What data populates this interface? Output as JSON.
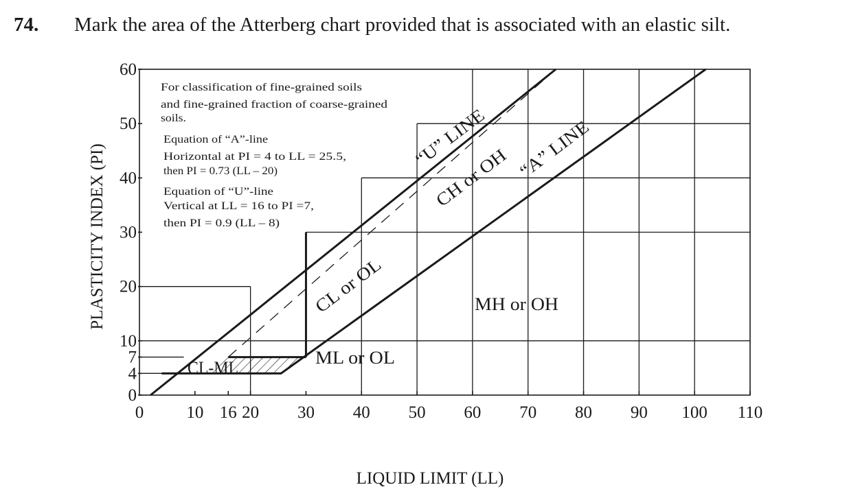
{
  "question": {
    "number": "74.",
    "text": "Mark the area of the Atterberg chart provided that is associated with an elastic silt."
  },
  "chart_data": {
    "type": "line",
    "xlabel": "LIQUID LIMIT (LL)",
    "ylabel": "PLASTICITY INDEX (PI)",
    "xlim": [
      0,
      110
    ],
    "ylim": [
      0,
      60
    ],
    "x_ticks": [
      {
        "label": "0",
        "value": 0
      },
      {
        "label": "10",
        "value": 10
      },
      {
        "label": "16",
        "value": 16
      },
      {
        "label": "20",
        "value": 20
      },
      {
        "label": "30",
        "value": 30
      },
      {
        "label": "40",
        "value": 40
      },
      {
        "label": "50",
        "value": 50
      },
      {
        "label": "60",
        "value": 60
      },
      {
        "label": "70",
        "value": 70
      },
      {
        "label": "80",
        "value": 80
      },
      {
        "label": "90",
        "value": 90
      },
      {
        "label": "100",
        "value": 100
      },
      {
        "label": "110",
        "value": 110
      }
    ],
    "y_ticks": [
      {
        "label": "0",
        "value": 0
      },
      {
        "label": "4",
        "value": 4
      },
      {
        "label": "7",
        "value": 7
      },
      {
        "label": "10",
        "value": 10
      },
      {
        "label": "20",
        "value": 20
      },
      {
        "label": "30",
        "value": 30
      },
      {
        "label": "40",
        "value": 40
      },
      {
        "label": "50",
        "value": 50
      },
      {
        "label": "60",
        "value": 60
      }
    ],
    "series": [
      {
        "name": "“A” LINE",
        "style": "solid",
        "points": [
          [
            4,
            4
          ],
          [
            25.5,
            4
          ],
          [
            102,
            60
          ]
        ]
      },
      {
        "name": "“U” LINE",
        "style": "dashed",
        "points": [
          [
            16,
            7
          ],
          [
            75,
            60
          ]
        ]
      }
    ],
    "boundary_lines": [
      {
        "style": "solid",
        "points": [
          [
            16,
            7
          ],
          [
            30,
            7
          ]
        ]
      },
      {
        "style": "solid",
        "points": [
          [
            30,
            7
          ],
          [
            30,
            30
          ]
        ]
      }
    ],
    "notes": [
      "For classification of fine-grained soils",
      "and fine-grained fraction of coarse-grained",
      "soils.",
      "Equation of “A”-line",
      "Horizontal at PI = 4 to LL = 25.5,",
      "then PI = 0.73 (LL – 20)",
      "Equation of “U”-line",
      "Vertical at LL = 16 to PI =7,",
      "then PI = 0.9 (LL – 8)"
    ],
    "regions": [
      {
        "label": "CL-ML",
        "hatched": true
      },
      {
        "label": "CL or OL"
      },
      {
        "label": "ML or OL"
      },
      {
        "label": "CH or OH"
      },
      {
        "label": "MH or OH"
      }
    ],
    "line_labels": {
      "u_line": "“U” LINE",
      "a_line": "“A” LINE"
    },
    "grid": true
  }
}
